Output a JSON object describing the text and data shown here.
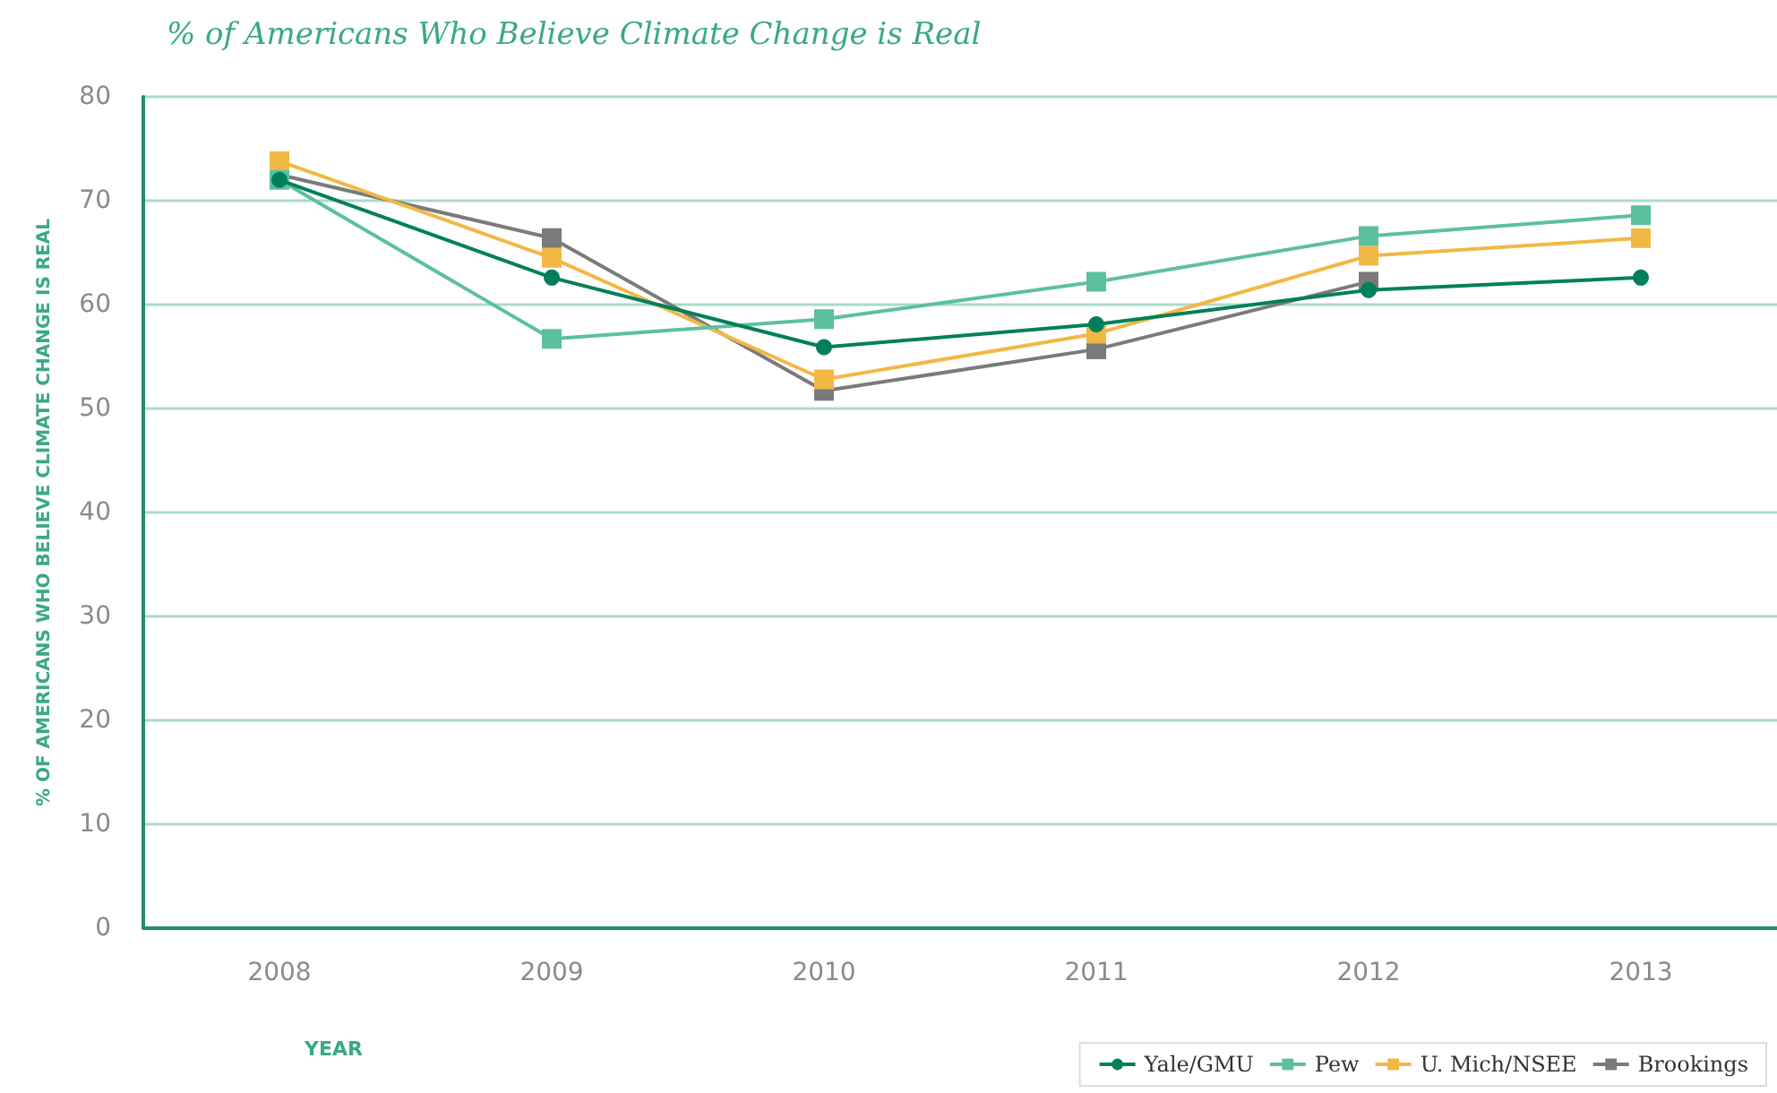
{
  "chart_data": {
    "type": "line",
    "title": "% of Americans Who Believe Climate Change is Real",
    "xlabel": "YEAR",
    "ylabel": "% OF AMERICANS WHO BELIEVE CLIMATE CHANGE IS REAL",
    "categories": [
      "2008",
      "2009",
      "2010",
      "2011",
      "2012",
      "2013"
    ],
    "series": [
      {
        "name": "Yale/GMU",
        "color": "#00805a",
        "marker": "circle",
        "values": [
          72,
          62.6,
          55.9,
          58.1,
          61.4,
          62.6
        ]
      },
      {
        "name": "Pew",
        "color": "#5cc0a0",
        "marker": "square",
        "values": [
          72,
          56.7,
          58.6,
          62.2,
          66.6,
          68.6
        ]
      },
      {
        "name": "U. Mich/NSEE",
        "color": "#f2b844",
        "marker": "square",
        "values": [
          73.8,
          64.5,
          52.8,
          57.2,
          64.7,
          66.4
        ]
      },
      {
        "name": "Brookings",
        "color": "#7a7a7a",
        "marker": "square",
        "values": [
          72.5,
          66.4,
          51.7,
          55.7,
          62.2,
          null
        ]
      }
    ],
    "ylim": [
      0,
      80
    ],
    "yticks": [
      0,
      10,
      20,
      30,
      40,
      50,
      60,
      70,
      80
    ],
    "grid": "y",
    "legend": "bottom right",
    "line_style": "solid"
  }
}
